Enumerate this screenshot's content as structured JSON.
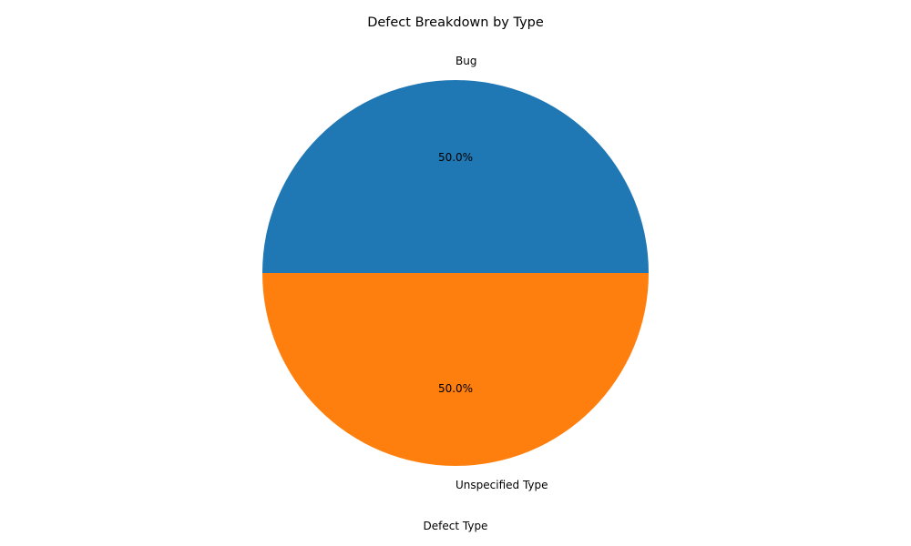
{
  "chart_data": {
    "type": "pie",
    "title": "Defect Breakdown by Type",
    "xlabel": "Defect Type",
    "categories": [
      "Bug",
      "Unspecified Type"
    ],
    "values": [
      1,
      1
    ],
    "percent_labels": [
      "50.0%",
      "50.0%"
    ],
    "colors": [
      "#1f77b4",
      "#ff7f0e"
    ],
    "start_angle_deg": 0,
    "direction": "counterclockwise"
  }
}
